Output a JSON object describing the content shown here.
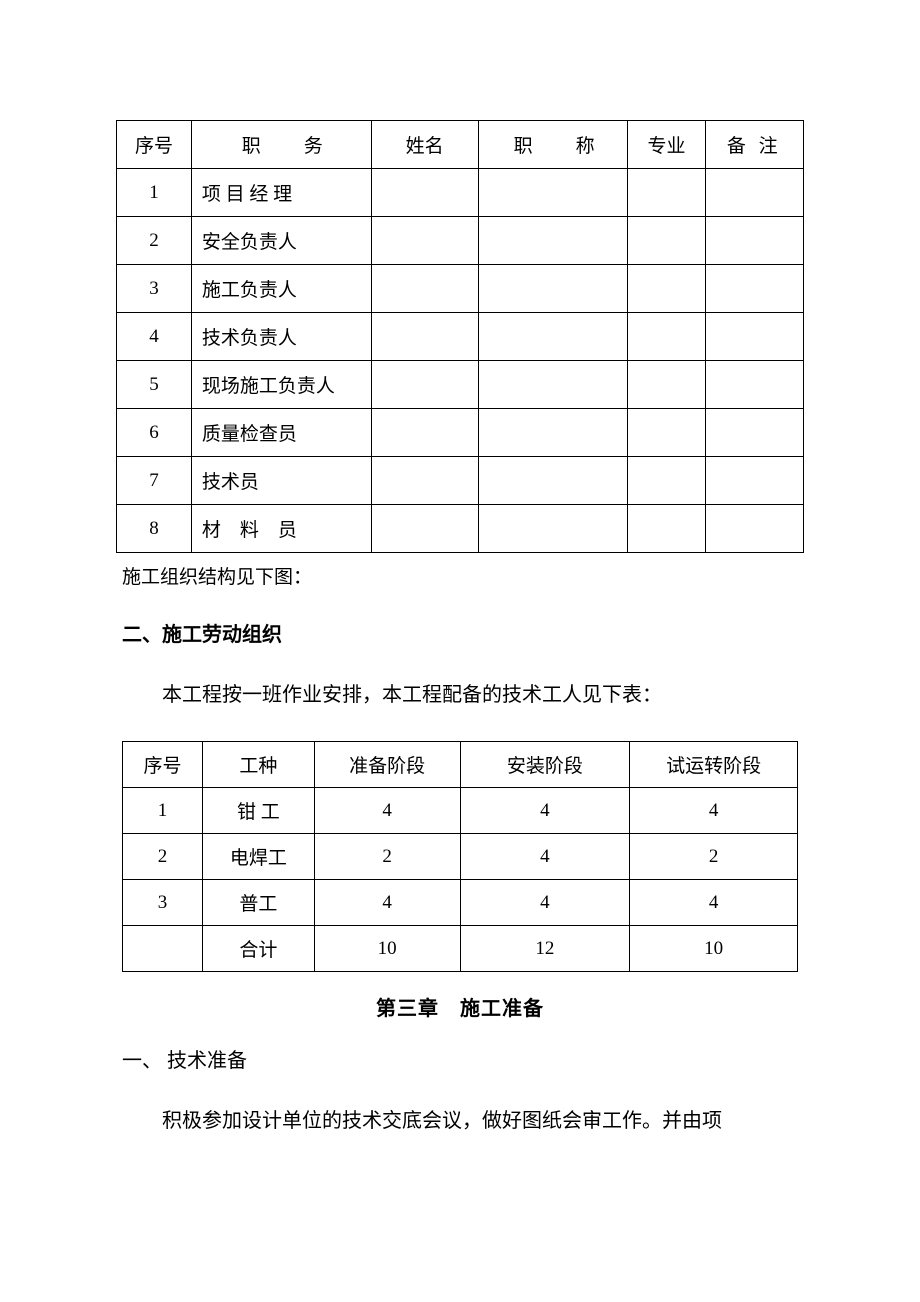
{
  "table1": {
    "headers": {
      "seq": "序号",
      "position": "职　务",
      "name": "姓名",
      "title": "职　称",
      "major": "专业",
      "note": "备 注"
    },
    "rows": [
      {
        "seq": "1",
        "position": "项 目 经 理",
        "name": "",
        "title": "",
        "major": "",
        "note": ""
      },
      {
        "seq": "2",
        "position": "安全负责人",
        "name": "",
        "title": "",
        "major": "",
        "note": ""
      },
      {
        "seq": "3",
        "position": "施工负责人",
        "name": "",
        "title": "",
        "major": "",
        "note": ""
      },
      {
        "seq": "4",
        "position": "技术负责人",
        "name": "",
        "title": "",
        "major": "",
        "note": ""
      },
      {
        "seq": "5",
        "position": "现场施工负责人",
        "name": "",
        "title": "",
        "major": "",
        "note": ""
      },
      {
        "seq": "6",
        "position": "质量检查员",
        "name": "",
        "title": "",
        "major": "",
        "note": ""
      },
      {
        "seq": "7",
        "position": "技术员",
        "name": "",
        "title": "",
        "major": "",
        "note": ""
      },
      {
        "seq": "8",
        "position": "材　料　员",
        "name": "",
        "title": "",
        "major": "",
        "note": ""
      }
    ]
  },
  "structure_note": "施工组织结构见下图：",
  "section2_heading": "二、施工劳动组织",
  "section2_body": "本工程按一班作业安排，本工程配备的技术工人见下表：",
  "table2": {
    "headers": {
      "seq": "序号",
      "type": "工种",
      "phase1": "准备阶段",
      "phase2": "安装阶段",
      "phase3": "试运转阶段"
    },
    "rows": [
      {
        "seq": "1",
        "type": "钳 工",
        "p1": "4",
        "p2": "4",
        "p3": "4"
      },
      {
        "seq": "2",
        "type": "电焊工",
        "p1": "2",
        "p2": "4",
        "p3": "2"
      },
      {
        "seq": "3",
        "type": "普工",
        "p1": "4",
        "p2": "4",
        "p3": "4"
      },
      {
        "seq": "",
        "type": "合计",
        "p1": "10",
        "p2": "12",
        "p3": "10"
      }
    ]
  },
  "chapter3_title": "第三章　施工准备",
  "section3_1_heading": "一、 技术准备",
  "section3_1_body": "积极参加设计单位的技术交底会议，做好图纸会审工作。并由项"
}
